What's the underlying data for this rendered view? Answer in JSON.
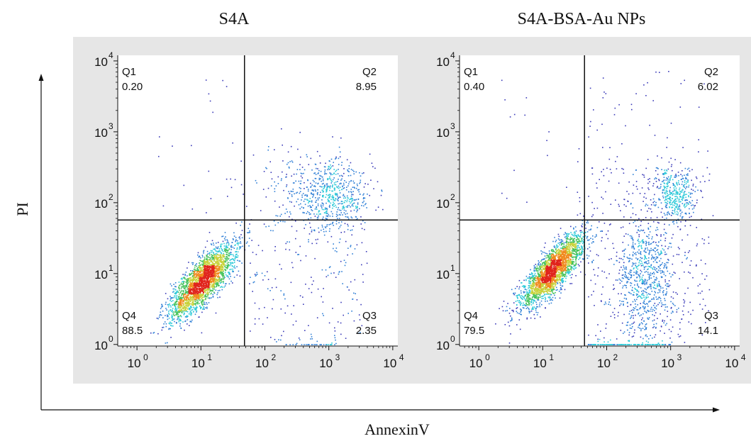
{
  "x_axis_title": "AnnexinV",
  "y_axis_title": "PI",
  "chart_data": [
    {
      "type": "scatter",
      "title": "S4A",
      "xlabel": "AnnexinV",
      "ylabel": "PI",
      "scale": "log",
      "xlim": [
        0.5,
        12000
      ],
      "ylim": [
        0.95,
        12000
      ],
      "x_ticks": [
        "10^0",
        "10^1",
        "10^2",
        "10^3",
        "10^4"
      ],
      "y_ticks": [
        "10^0",
        "10^1",
        "10^2",
        "10^3",
        "10^4"
      ],
      "gate": {
        "x": 48,
        "y": 57
      },
      "quadrants": [
        {
          "name": "Q1",
          "value": "0.20",
          "position": "top-left"
        },
        {
          "name": "Q2",
          "value": "8.95",
          "position": "top-right"
        },
        {
          "name": "Q3",
          "value": "2.35",
          "position": "bottom-right"
        },
        {
          "name": "Q4",
          "value": "88.5",
          "position": "bottom-left"
        }
      ]
    },
    {
      "type": "scatter",
      "title": "S4A-BSA-Au NPs",
      "xlabel": "AnnexinV",
      "ylabel": "PI",
      "scale": "log",
      "xlim": [
        0.5,
        12000
      ],
      "ylim": [
        0.95,
        12000
      ],
      "x_ticks": [
        "10^0",
        "10^1",
        "10^2",
        "10^3",
        "10^4"
      ],
      "y_ticks": [
        "10^0",
        "10^1",
        "10^2",
        "10^3",
        "10^4"
      ],
      "gate": {
        "x": 45,
        "y": 57
      },
      "quadrants": [
        {
          "name": "Q1",
          "value": "0.40",
          "position": "top-left"
        },
        {
          "name": "Q2",
          "value": "6.02",
          "position": "top-right"
        },
        {
          "name": "Q3",
          "value": "14.1",
          "position": "bottom-right"
        },
        {
          "name": "Q4",
          "value": "79.5",
          "position": "bottom-left"
        }
      ]
    }
  ]
}
